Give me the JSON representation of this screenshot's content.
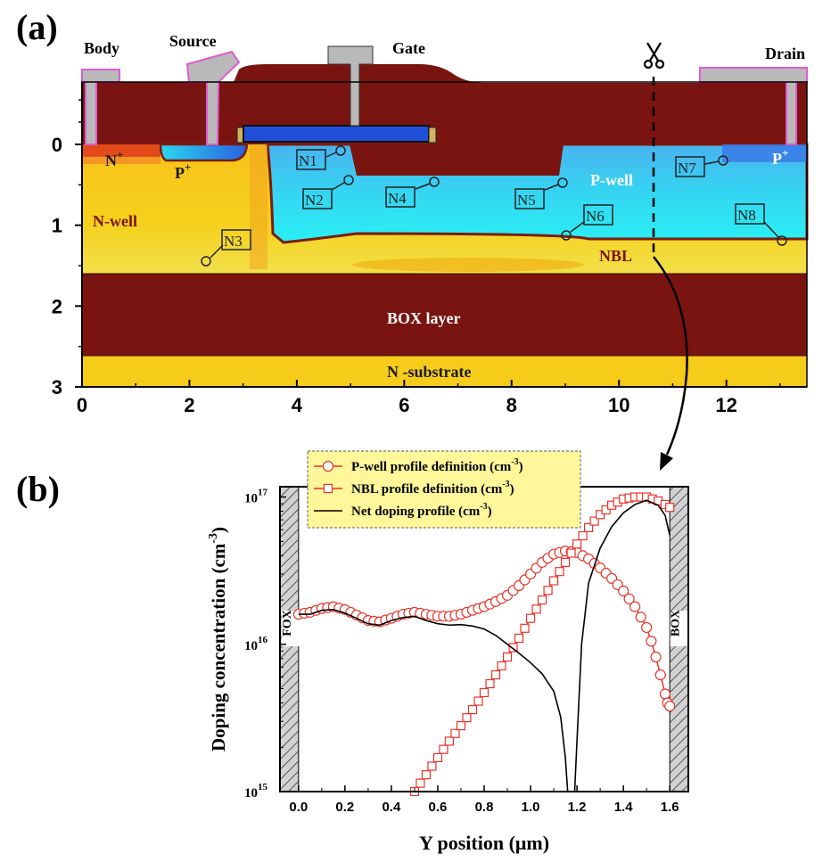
{
  "figure": {
    "panel_a_label": "(a)",
    "panel_b_label": "(b)"
  },
  "device": {
    "terminals": {
      "body": "Body",
      "source": "Source",
      "gate": "Gate",
      "drain": "Drain"
    },
    "regions": {
      "nplus": "N",
      "nplus_sup": "+",
      "pplus_source": "P",
      "pplus_source_sup": "+",
      "pplus_drain": "P",
      "pplus_drain_sup": "+",
      "pwell": "P-well",
      "nwell": "N-well",
      "nbl": "NBL",
      "box": "BOX layer",
      "substrate": "N -substrate"
    },
    "nodes": [
      "N1",
      "N2",
      "N3",
      "N4",
      "N5",
      "N6",
      "N7",
      "N8"
    ],
    "colors": {
      "oxide": "#7a1410",
      "nwell": "#f5cc1a",
      "nwell_light": "#f2e15a",
      "pwell": "#28ecf4",
      "pwell_dark": "#4ab9ef",
      "pplus": "#2b5fe0",
      "nplus": "#e24a1a",
      "metal": "#b9b9b9",
      "gate_poly": "#1f4fd8",
      "junction": "#7a1c10",
      "box": "#7a1410",
      "substrate": "#f5cc1a"
    },
    "axes": {
      "x_ticks": [
        "0",
        "2",
        "4",
        "6",
        "8",
        "10",
        "12"
      ],
      "y_ticks": [
        "0",
        "1",
        "2",
        "3"
      ],
      "x_range": [
        0,
        13.5
      ],
      "y_range": [
        0,
        3
      ]
    }
  },
  "chart_data": {
    "type": "line",
    "ylabel": "Doping concentration (cm",
    "ylabel_sup": "-3",
    "ylabel_close": ")",
    "xlabel": "Y position (μm)",
    "x_ticks": [
      "0.0",
      "0.2",
      "0.4",
      "0.6",
      "0.8",
      "1.0",
      "1.2",
      "1.4",
      "1.6"
    ],
    "y_ticks": [
      {
        "base": "10",
        "exp": "15"
      },
      {
        "base": "10",
        "exp": "16"
      },
      {
        "base": "10",
        "exp": "17"
      }
    ],
    "xlim": [
      -0.08,
      1.68
    ],
    "ylim_log10": [
      15,
      17.07
    ],
    "y_scale": "log",
    "oxide_labels": {
      "left": "FOX",
      "right": "BOX"
    },
    "legend": [
      {
        "text": "P-well profile definition (cm",
        "sup": "-3",
        "close": ")",
        "marker": "circle",
        "color": "#e8342a"
      },
      {
        "text": "NBL profile definition (cm",
        "sup": "-3",
        "close": ")",
        "marker": "square",
        "color": "#e8342a"
      },
      {
        "text": "Net doping profile (cm",
        "sup": "-3",
        "close": ")",
        "marker": "line",
        "color": "#000000"
      }
    ],
    "legend_bg": "#fff79a",
    "series": [
      {
        "name": "P-well profile definition (cm-3)",
        "x": [
          0.0,
          0.05,
          0.1,
          0.15,
          0.2,
          0.25,
          0.3,
          0.35,
          0.4,
          0.45,
          0.5,
          0.55,
          0.6,
          0.65,
          0.7,
          0.75,
          0.8,
          0.85,
          0.9,
          0.95,
          1.0,
          1.05,
          1.1,
          1.15,
          1.2,
          1.25,
          1.3,
          1.35,
          1.4,
          1.45,
          1.5,
          1.52,
          1.54,
          1.56,
          1.58,
          1.59,
          1.6
        ],
        "y": [
          1.6e+16,
          1.65e+16,
          1.75e+16,
          1.8e+16,
          1.72e+16,
          1.58e+16,
          1.45e+16,
          1.42e+16,
          1.5e+16,
          1.6e+16,
          1.65e+16,
          1.6e+16,
          1.55e+16,
          1.55e+16,
          1.6e+16,
          1.7e+16,
          1.8e+16,
          1.95e+16,
          2.15e+16,
          2.5e+16,
          3e+16,
          3.6e+16,
          4.1e+16,
          4.3e+16,
          4.2e+16,
          3.8e+16,
          3.3e+16,
          2.8e+16,
          2.3e+16,
          1.8e+16,
          1.3e+16,
          1.05e+16,
          8200000000000000.0,
          6200000000000000.0,
          4600000000000000.0,
          4000000000000000.0,
          3800000000000000.0
        ]
      },
      {
        "name": "NBL profile definition (cm-3)",
        "x": [
          0.5,
          0.55,
          0.6,
          0.65,
          0.7,
          0.75,
          0.8,
          0.85,
          0.9,
          0.95,
          1.0,
          1.05,
          1.1,
          1.15,
          1.2,
          1.25,
          1.3,
          1.35,
          1.4,
          1.45,
          1.5,
          1.55,
          1.58,
          1.6
        ],
        "y": [
          1000000000000000.0,
          1300000000000000.0,
          1700000000000000.0,
          2200000000000000.0,
          2800000000000000.0,
          3600000000000000.0,
          4700000000000000.0,
          6200000000000000.0,
          8200000000000000.0,
          1.1e+16,
          1.5e+16,
          2e+16,
          2.7e+16,
          3.6e+16,
          4.8e+16,
          6.2e+16,
          7.6e+16,
          8.8e+16,
          9.7e+16,
          1e+17,
          1e+17,
          9.4e+16,
          8.9e+16,
          8.5e+16
        ]
      },
      {
        "name": "Net doping profile (cm-3)",
        "x": [
          0.0,
          0.05,
          0.1,
          0.15,
          0.2,
          0.25,
          0.3,
          0.35,
          0.4,
          0.45,
          0.5,
          0.55,
          0.6,
          0.65,
          0.7,
          0.75,
          0.8,
          0.85,
          0.9,
          0.95,
          1.0,
          1.05,
          1.1,
          1.13,
          1.15,
          1.16,
          1.19,
          1.2,
          1.22,
          1.25,
          1.3,
          1.35,
          1.4,
          1.45,
          1.5,
          1.55,
          1.58,
          1.6
        ],
        "y": [
          1.6e+16,
          1.6e+16,
          1.7e+16,
          1.72e+16,
          1.63e+16,
          1.5e+16,
          1.38e+16,
          1.35e+16,
          1.45e+16,
          1.52e+16,
          1.55e+16,
          1.45e+16,
          1.38e+16,
          1.35e+16,
          1.36e+16,
          1.33e+16,
          1.27e+16,
          1.15e+16,
          1e+16,
          8700000000000000.0,
          7500000000000000.0,
          6300000000000000.0,
          4800000000000000.0,
          3200000000000000.0,
          1700000000000000.0,
          1000000000000000.0,
          1000000000000000.0,
          2200000000000000.0,
          1e+16,
          2.6e+16,
          4.5e+16,
          6.3e+16,
          7.8e+16,
          8.9e+16,
          9.5e+16,
          8.8e+16,
          7.5e+16,
          5.5e+16
        ]
      }
    ]
  }
}
